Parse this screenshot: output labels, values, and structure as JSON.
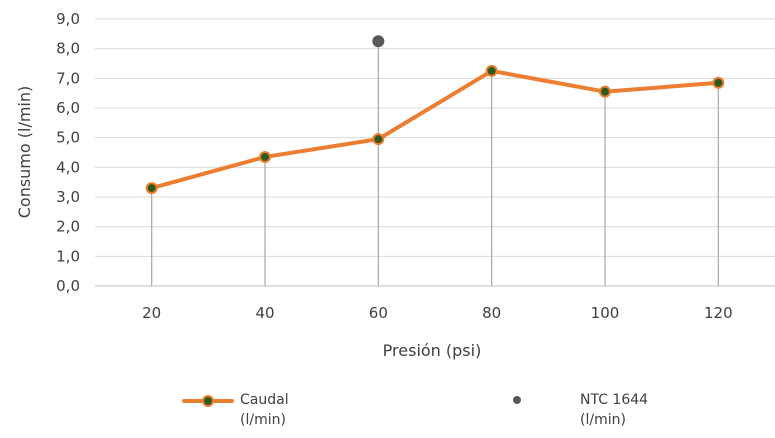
{
  "chart_data": {
    "type": "line",
    "xlabel": "Presión (psi)",
    "ylabel": "Consumo (l/min)",
    "categories": [
      "20",
      "40",
      "60",
      "80",
      "100",
      "120"
    ],
    "yticks": [
      "0,0",
      "1,0",
      "2,0",
      "3,0",
      "4,0",
      "5,0",
      "6,0",
      "7,0",
      "8,0",
      "9,0"
    ],
    "ylim": [
      0,
      9
    ],
    "grid": true,
    "legend_position": "bottom",
    "series": [
      {
        "name_line1": "Caudal",
        "name_line2": "(l/min)",
        "kind": "line-markers",
        "values": [
          3.3,
          4.35,
          4.95,
          7.25,
          6.55,
          6.85
        ],
        "color": "#ED7D31",
        "marker_color": "#2E5A1C"
      },
      {
        "name_line1": "NTC 1644",
        "name_line2": "(l/min)",
        "kind": "point",
        "values": [
          null,
          null,
          8.25,
          null,
          null,
          null
        ],
        "color": "#595959"
      }
    ],
    "drop_lines": true
  }
}
